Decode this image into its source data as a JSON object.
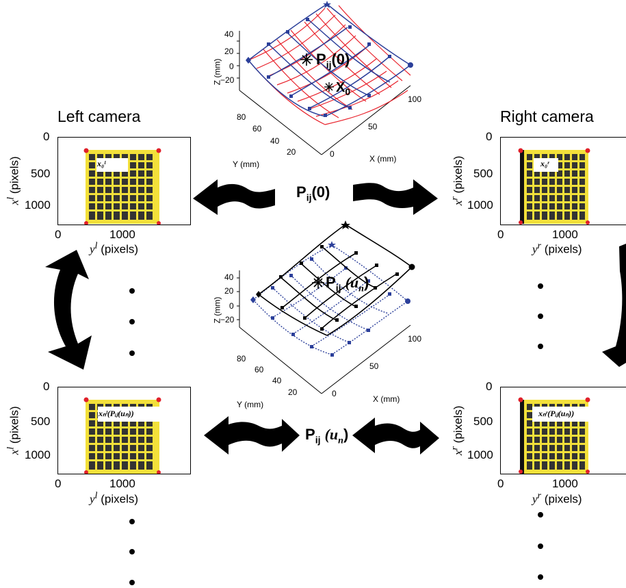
{
  "left_camera": {
    "title": "Left camera"
  },
  "right_camera": {
    "title": "Right camera"
  },
  "image_axes": {
    "y_ticks": [
      "0",
      "500",
      "1000"
    ],
    "x_ticks": [
      "0",
      "1000"
    ],
    "left_xlabel_sym": "x",
    "left_xlabel_sup": "l",
    "left_ylabel_sym": "y",
    "left_ylabel_sup": "l",
    "right_xlabel_sym": "x",
    "right_xlabel_sup": "r",
    "right_ylabel_sym": "y",
    "right_ylabel_sup": "r",
    "pixels": "(pixels)"
  },
  "insets": {
    "left_top": "x₀ˡ",
    "right_top": "x₀ʳ",
    "left_bottom": "xₙˡ(Pᵢⱼ(uₙ))",
    "right_bottom": "xₙʳ(Pᵢⱼ(uₙ))"
  },
  "plot_top": {
    "z_label": "Z (mm)",
    "y_label": "Y (mm)",
    "x_label": "X (mm)",
    "z_ticks": [
      "40",
      "20",
      "0",
      "−20"
    ],
    "y_ticks": [
      "80",
      "60",
      "40",
      "20"
    ],
    "x_ticks": [
      "0",
      "50",
      "100"
    ],
    "annot_p": "P",
    "annot_p_sub": "ij",
    "annot_p_arg": "(0)",
    "annot_x": "X",
    "annot_x_sub": "0"
  },
  "plot_mid": {
    "z_label": "Z (mm)",
    "y_label": "Y (mm)",
    "x_label": "X (mm)",
    "z_ticks": [
      "40",
      "20",
      "0",
      "−20"
    ],
    "y_ticks": [
      "80",
      "60",
      "40",
      "20"
    ],
    "x_ticks": [
      "0",
      "50",
      "100"
    ],
    "annot_p": "P",
    "annot_p_sub": "ij",
    "annot_p_arg": "(u",
    "annot_p_arg_sub": "n",
    "annot_p_close": ")"
  },
  "center_label_top": {
    "p": "P",
    "sub": "ij",
    "arg": "(0)"
  },
  "center_label_mid": {
    "p": "P",
    "sub": "ij",
    "arg": "(u",
    "arg_sub": "n",
    "close": ")"
  },
  "colors": {
    "grid_red": "#e8202a",
    "mesh_blue": "#2b3f9a",
    "corner_red": "#e0202a",
    "image_yellow": "#f3e03a"
  }
}
